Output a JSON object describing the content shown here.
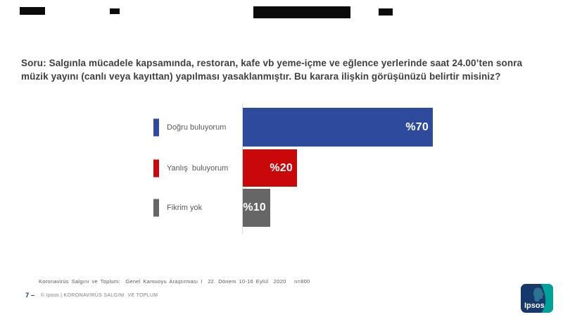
{
  "slide": {
    "question_line1": "Soru: Salgınla mücadele kapsamında, restoran, kafe vb yeme-içme ve eğlence yerlerinde saat 24.00’ten sonra",
    "question_line2": "müzik yayını (canlı veya kayıttan) yapılması yasaklanmıştır. Bu karara ilişkin görüşünüzü belirtir misiniz?"
  },
  "chart_data": {
    "type": "bar",
    "orientation": "horizontal",
    "categories": [
      "Doğru buluyorum",
      "Yanlış  buluyorum",
      "Fikrim yok"
    ],
    "values": [
      70,
      20,
      10
    ],
    "value_labels": [
      "%70",
      "%20",
      "%10"
    ],
    "colors": [
      "#2E4A9C",
      "#C9080C",
      "#666666"
    ],
    "value_label_color": "#FFFFFF",
    "xlim": [
      0,
      100
    ],
    "title": "",
    "xlabel": "",
    "ylabel": "",
    "grid": false,
    "legend_position": "left-of-bars"
  },
  "footer": {
    "source": "Koronavirüs Salgını ve Toplum:  Genel Kamuoyu Araştırması I  22. Dönem 10-16 Eylül  2020   n=800",
    "page_number": "7 –",
    "copyright": "© Ipsos | KORONAVİRÜS SALGINI  VE TOPLUM"
  },
  "logo": {
    "label": "Ipsos",
    "navy": "#16386C",
    "teal": "#00A19B",
    "profile": "#2C7A96"
  }
}
